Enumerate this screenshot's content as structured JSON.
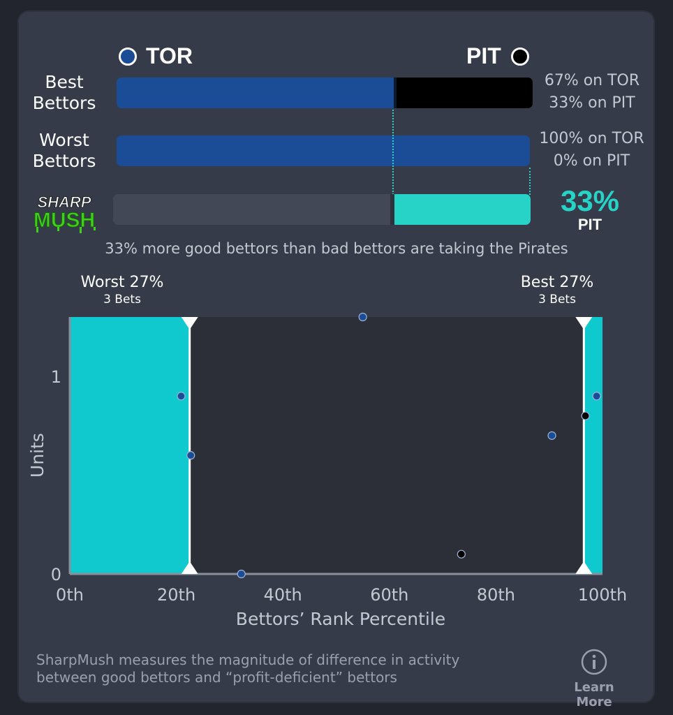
{
  "teams": {
    "left": {
      "label": "TOR",
      "color": "#1a4d96"
    },
    "right": {
      "label": "PIT",
      "color": "#000000"
    }
  },
  "best_bettors": {
    "label_line1": "Best",
    "label_line2": "Bettors",
    "left_pct": 67,
    "right_pct": 33,
    "left_text": "67% on TOR",
    "right_text": "33% on PIT"
  },
  "worst_bettors": {
    "label_line1": "Worst",
    "label_line2": "Bettors",
    "left_pct": 100,
    "right_pct": 0,
    "left_text": "100% on TOR",
    "right_text": "0% on PIT"
  },
  "sharpmush": {
    "logo_line1": "SHARP",
    "logo_line2": "MUSH",
    "value": 33,
    "value_text": "33%",
    "team": "PIT",
    "accent": "#27d3c6"
  },
  "summary": "33% more good bettors than bad bettors are taking the Pirates",
  "chart_data": {
    "type": "scatter",
    "xlabel": "Bettors’ Rank Percentile",
    "ylabel": "Units",
    "xlim": [
      0,
      100
    ],
    "ylim": [
      0,
      1.3
    ],
    "x_ticks": [
      "0th",
      "20th",
      "40th",
      "60th",
      "80th",
      "100th"
    ],
    "y_ticks": [
      "0",
      "1"
    ],
    "regions": [
      {
        "label": "Worst 27%",
        "sublabel": "3 Bets",
        "x_start": 0,
        "x_end": 22.5
      },
      {
        "label": "Best 27%",
        "sublabel": "3 Bets",
        "x_start": 96.5,
        "x_end": 100
      }
    ],
    "series": [
      {
        "team": "TOR",
        "color": "#1a4d96",
        "points": [
          [
            20.9,
            0.9
          ],
          [
            22.7,
            0.6
          ],
          [
            32.2,
            0.0
          ],
          [
            55.0,
            1.3
          ],
          [
            90.5,
            0.7
          ],
          [
            98.9,
            0.9
          ]
        ]
      },
      {
        "team": "PIT",
        "color": "#000000",
        "points": [
          [
            73.5,
            0.1
          ],
          [
            96.8,
            0.8
          ]
        ]
      }
    ]
  },
  "footer": {
    "line1": "SharpMush measures the magnitude of difference in activity",
    "line2": "between good bettors and “profit-deficient” bettors",
    "learn_more": "Learn More"
  }
}
